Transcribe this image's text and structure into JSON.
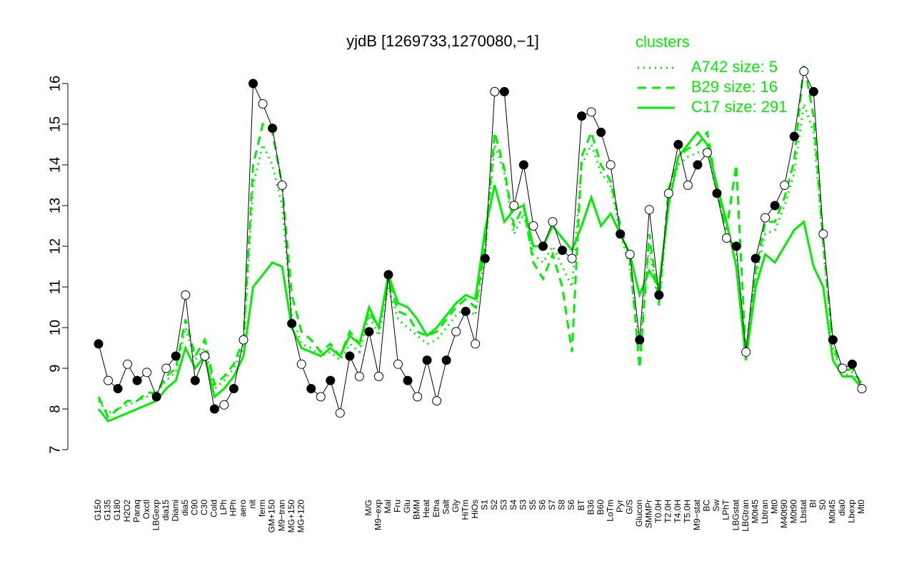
{
  "chart_data": {
    "type": "line",
    "title": "yjdB [1269733,1270080,−1]",
    "categories": [
      "G150",
      "G135",
      "G180",
      "H2O2",
      "Paraq",
      "Oxctl",
      "LBGexp",
      "dia15",
      "Diami",
      "dia5",
      "C90",
      "C30",
      "Cold",
      "LPh",
      "HPh",
      "aero",
      "nit",
      "ferm",
      "GM+150",
      "M9−tran",
      "MG+150",
      "MG+120",
      null,
      null,
      null,
      null,
      null,
      null,
      "M/G",
      "M9−exp",
      "Mal",
      "Fru",
      "Glu",
      "BMM",
      "Heat",
      "Etha",
      "Salt",
      "Gly",
      "HiTm",
      "HiOs",
      "S1",
      "S2",
      "S3",
      "S4",
      "S3",
      "S5",
      "S6",
      "S7",
      "S8",
      "S6",
      "BT",
      "B36",
      "B60",
      "LoTm",
      "Pyr",
      "G/S",
      "Glucon",
      "SMMPr",
      "T0.0H",
      "T2.0H",
      "T4.0H",
      "T5.0H",
      "M9−stat",
      "BC",
      "Sw",
      "LPhT",
      "LBGstat",
      "LBGtran",
      "M0t45",
      "Lbtran",
      "Mt0",
      "M40t90",
      "M0t90",
      "Lbstat",
      "BI",
      "S0",
      "M0t45",
      "dia0",
      "Lbexp",
      "Mt0"
    ],
    "values": [
      9.6,
      8.7,
      8.5,
      9.1,
      8.7,
      8.9,
      8.3,
      9.0,
      9.3,
      10.8,
      8.7,
      9.3,
      8.0,
      8.1,
      8.5,
      9.7,
      16.0,
      15.5,
      14.9,
      13.5,
      10.1,
      9.1,
      8.5,
      8.3,
      8.7,
      7.9,
      9.3,
      8.8,
      9.9,
      8.8,
      11.3,
      9.1,
      8.7,
      8.3,
      9.2,
      8.2,
      9.2,
      9.9,
      10.4,
      9.6,
      11.7,
      15.8,
      15.8,
      13.0,
      14.0,
      12.5,
      12.0,
      12.6,
      11.9,
      11.7,
      15.2,
      15.3,
      14.8,
      14.0,
      12.3,
      11.8,
      9.7,
      12.9,
      10.8,
      13.3,
      14.5,
      13.5,
      14.0,
      14.3,
      13.3,
      12.2,
      12.0,
      9.4,
      11.7,
      12.7,
      13.0,
      13.5,
      14.7,
      16.3,
      15.8,
      12.3,
      9.7,
      9.0,
      9.1,
      8.5
    ],
    "color": "#000000",
    "legend_title": "clusters",
    "series": [
      {
        "name": "A742 size: 5",
        "color": "#00ee00",
        "dash": "dotted",
        "values": [
          8.2,
          7.9,
          8.0,
          8.1,
          8.2,
          8.3,
          8.4,
          8.7,
          8.9,
          10.0,
          9.2,
          9.5,
          8.5,
          8.7,
          9.0,
          9.5,
          13.5,
          14.5,
          14.0,
          13.0,
          10.3,
          9.6,
          9.5,
          9.3,
          9.4,
          9.2,
          9.6,
          9.4,
          10.3,
          9.8,
          11.0,
          10.2,
          10.0,
          9.8,
          9.6,
          9.7,
          10.0,
          10.3,
          10.5,
          10.3,
          11.8,
          14.5,
          13.8,
          12.3,
          12.8,
          11.8,
          11.6,
          12.0,
          11.5,
          11.0,
          14.0,
          14.5,
          13.8,
          13.5,
          12.3,
          11.5,
          9.5,
          12.0,
          10.5,
          13.2,
          14.0,
          14.2,
          14.3,
          14.4,
          13.3,
          12.3,
          11.8,
          9.4,
          11.2,
          12.3,
          12.4,
          13.0,
          13.8,
          15.5,
          14.8,
          12.0,
          9.5,
          8.8,
          8.9,
          8.6
        ]
      },
      {
        "name": "B29 size: 16",
        "color": "#00ee00",
        "dash": "dashed",
        "values": [
          8.3,
          7.8,
          8.0,
          8.2,
          8.2,
          8.4,
          8.4,
          8.8,
          9.0,
          10.2,
          9.3,
          9.7,
          8.6,
          8.8,
          9.1,
          9.7,
          14.0,
          15.0,
          14.8,
          13.5,
          10.8,
          9.9,
          9.7,
          9.4,
          9.6,
          9.3,
          9.9,
          9.6,
          10.4,
          10.0,
          11.2,
          10.4,
          10.3,
          9.9,
          9.8,
          9.9,
          10.2,
          10.5,
          10.7,
          10.5,
          12.0,
          14.8,
          13.9,
          12.5,
          13.0,
          11.6,
          11.2,
          11.8,
          11.0,
          9.4,
          14.2,
          14.8,
          14.0,
          13.6,
          12.5,
          11.7,
          9.0,
          12.3,
          10.6,
          13.4,
          14.2,
          14.4,
          14.5,
          14.8,
          13.4,
          12.4,
          14.0,
          9.3,
          11.4,
          12.6,
          12.6,
          13.2,
          14.1,
          16.5,
          15.2,
          12.1,
          9.6,
          8.9,
          9.0,
          8.6
        ]
      },
      {
        "name": "C17 size: 291",
        "color": "#00ee00",
        "dash": "solid",
        "values": [
          8.0,
          7.7,
          7.8,
          7.9,
          8.0,
          8.1,
          8.2,
          8.5,
          8.7,
          9.5,
          9.0,
          9.3,
          8.3,
          8.5,
          8.8,
          9.3,
          11.0,
          11.3,
          11.6,
          11.5,
          10.0,
          9.5,
          9.4,
          9.3,
          9.5,
          9.3,
          9.8,
          9.6,
          10.5,
          10.0,
          11.3,
          10.6,
          10.5,
          10.2,
          9.8,
          10.0,
          10.3,
          10.6,
          10.8,
          10.7,
          12.4,
          13.5,
          12.6,
          12.9,
          13.0,
          12.0,
          12.0,
          12.5,
          12.2,
          11.9,
          12.5,
          13.2,
          12.5,
          12.8,
          12.3,
          11.8,
          10.8,
          11.4,
          11.0,
          13.0,
          14.2,
          14.5,
          14.8,
          14.5,
          13.5,
          12.6,
          11.5,
          9.2,
          11.0,
          11.8,
          11.6,
          12.0,
          12.4,
          12.6,
          11.5,
          11.0,
          9.2,
          8.8,
          8.8,
          8.5
        ]
      }
    ],
    "ylim": [
      7,
      16
    ],
    "yticks": [
      7,
      8,
      9,
      10,
      11,
      12,
      13,
      14,
      15,
      16
    ]
  }
}
